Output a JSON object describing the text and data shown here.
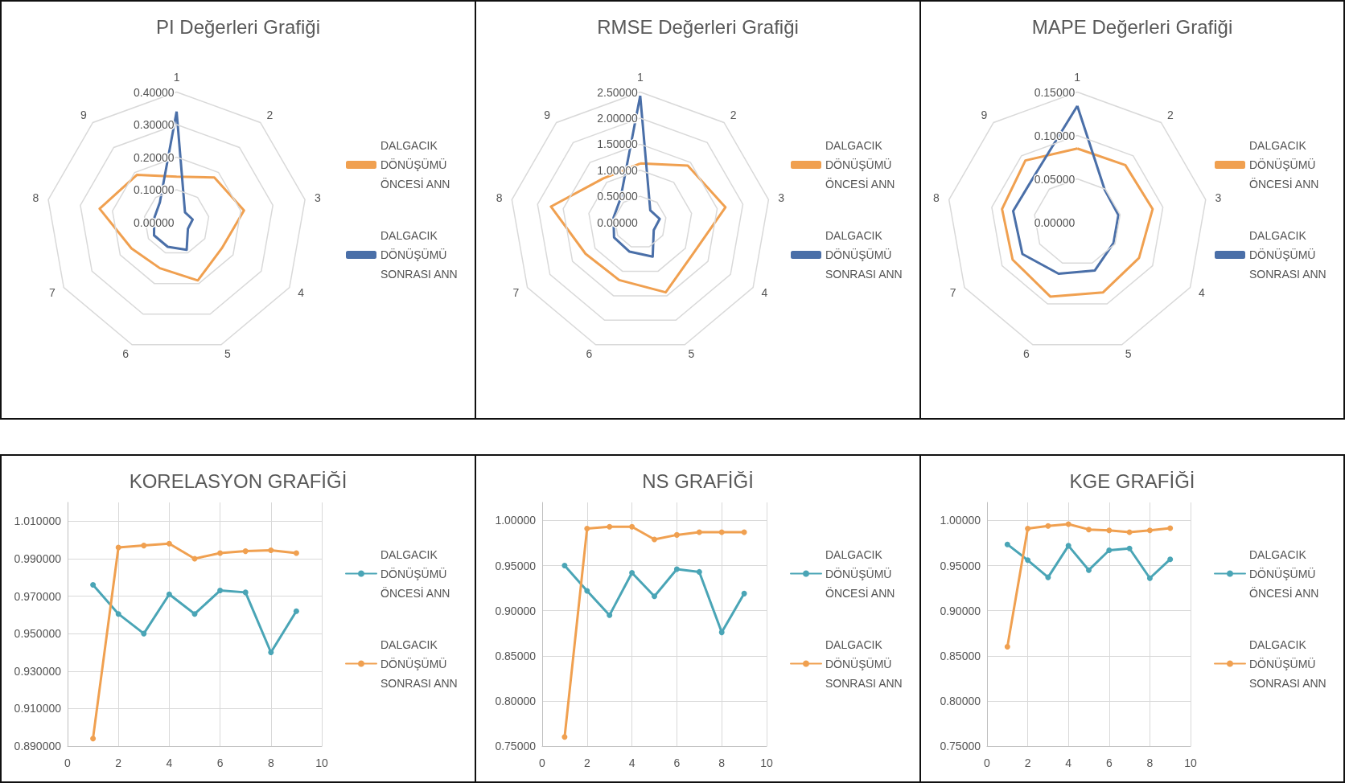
{
  "chart_data": [
    {
      "type": "radar",
      "title": "PI Değerleri Grafiği",
      "categories": [
        "1",
        "2",
        "3",
        "4",
        "5",
        "6",
        "7",
        "8",
        "9"
      ],
      "ylim": [
        0,
        0.4
      ],
      "yticks": [
        {
          "value": 0,
          "label": "0.00000"
        },
        {
          "value": 0.1,
          "label": "0.10000"
        },
        {
          "value": 0.2,
          "label": "0.20000"
        },
        {
          "value": 0.3,
          "label": "0.30000"
        },
        {
          "value": 0.4,
          "label": "0.40000"
        }
      ],
      "grid": true,
      "legend": "right",
      "series": [
        {
          "name": "DALGACIK DÖNÜŞÜMÜ ÖNCESİ ANN",
          "color": "#f0a050",
          "values": [
            0.14,
            0.18,
            0.21,
            0.16,
            0.19,
            0.15,
            0.16,
            0.24,
            0.19
          ]
        },
        {
          "name": "DALGACIK DÖNÜŞÜMÜ SONRASI ANN",
          "color": "#4a6fa8",
          "values": [
            0.34,
            0.04,
            0.05,
            0.04,
            0.09,
            0.08,
            0.08,
            0.07,
            0.08
          ]
        }
      ]
    },
    {
      "type": "radar",
      "title": "RMSE Değerleri Grafiği",
      "categories": [
        "1",
        "2",
        "3",
        "4",
        "5",
        "6",
        "7",
        "8",
        "9"
      ],
      "ylim": [
        0,
        2.5
      ],
      "yticks": [
        {
          "value": 0,
          "label": "0.00000"
        },
        {
          "value": 0.5,
          "label": "0.50000"
        },
        {
          "value": 1,
          "label": "1.00000"
        },
        {
          "value": 1.5,
          "label": "1.50000"
        },
        {
          "value": 2,
          "label": "2.00000"
        },
        {
          "value": 2.5,
          "label": "2.50000"
        }
      ],
      "grid": true,
      "legend": "right",
      "series": [
        {
          "name": "DALGACIK DÖNÜŞÜMÜ ÖNCESİ ANN",
          "color": "#f0a050",
          "values": [
            1.13,
            1.42,
            1.66,
            1.18,
            1.43,
            1.18,
            1.21,
            1.74,
            1.1
          ]
        },
        {
          "name": "DALGACIK DÖNÜŞÜMÜ SONRASI ANN",
          "color": "#4a6fa8",
          "values": [
            2.43,
            0.3,
            0.38,
            0.3,
            0.7,
            0.6,
            0.58,
            0.52,
            0.59
          ]
        }
      ]
    },
    {
      "type": "radar",
      "title": "MAPE Değerleri Grafiği",
      "categories": [
        "1",
        "2",
        "3",
        "4",
        "5",
        "6",
        "7",
        "8",
        "9"
      ],
      "ylim": [
        0,
        0.15
      ],
      "yticks": [
        {
          "value": 0,
          "label": "0.00000"
        },
        {
          "value": 0.05,
          "label": "0.05000"
        },
        {
          "value": 0.1,
          "label": "0.10000"
        },
        {
          "value": 0.15,
          "label": "0.15000"
        }
      ],
      "grid": true,
      "legend": "right",
      "series": [
        {
          "name": "DALGACIK DÖNÜŞÜMÜ ÖNCESİ ANN",
          "color": "#f0a050",
          "values": [
            0.085,
            0.086,
            0.088,
            0.082,
            0.086,
            0.091,
            0.086,
            0.088,
            0.093
          ]
        },
        {
          "name": "DALGACIK DÖNÜŞÜMÜ SONRASI ANN",
          "color": "#4a6fa8",
          "values": [
            0.134,
            0.049,
            0.048,
            0.048,
            0.059,
            0.063,
            0.073,
            0.075,
            0.074
          ]
        }
      ]
    },
    {
      "type": "line",
      "title": "KORELASYON GRAFİĞİ",
      "x": [
        1,
        2,
        3,
        4,
        5,
        6,
        7,
        8,
        9
      ],
      "xlim": [
        0,
        10
      ],
      "xticks": [
        0,
        2,
        4,
        6,
        8,
        10
      ],
      "ylim": [
        0.89,
        1.02
      ],
      "yticks": [
        {
          "value": 0.89,
          "label": "0.890000"
        },
        {
          "value": 0.91,
          "label": "0.910000"
        },
        {
          "value": 0.93,
          "label": "0.930000"
        },
        {
          "value": 0.95,
          "label": "0.950000"
        },
        {
          "value": 0.97,
          "label": "0.970000"
        },
        {
          "value": 0.99,
          "label": "0.990000"
        },
        {
          "value": 1.01,
          "label": "1.010000"
        }
      ],
      "grid": true,
      "legend": "right",
      "marker": "circle",
      "series": [
        {
          "name": "DALGACIK DÖNÜŞÜMÜ ÖNCESİ ANN",
          "color": "#4aa5b6",
          "values": [
            0.976,
            0.9605,
            0.95,
            0.971,
            0.9605,
            0.973,
            0.972,
            0.94,
            0.962
          ]
        },
        {
          "name": "DALGACIK DÖNÜŞÜMÜ SONRASI ANN",
          "color": "#f0a050",
          "values": [
            0.894,
            0.996,
            0.997,
            0.998,
            0.99,
            0.993,
            0.994,
            0.9945,
            0.993
          ]
        }
      ]
    },
    {
      "type": "line",
      "title": "NS GRAFİĞİ",
      "x": [
        1,
        2,
        3,
        4,
        5,
        6,
        7,
        8,
        9
      ],
      "xlim": [
        0,
        10
      ],
      "xticks": [
        0,
        2,
        4,
        6,
        8,
        10
      ],
      "ylim": [
        0.75,
        1.02
      ],
      "yticks": [
        {
          "value": 0.75,
          "label": "0.75000"
        },
        {
          "value": 0.8,
          "label": "0.80000"
        },
        {
          "value": 0.85,
          "label": "0.85000"
        },
        {
          "value": 0.9,
          "label": "0.90000"
        },
        {
          "value": 0.95,
          "label": "0.95000"
        },
        {
          "value": 1,
          "label": "1.00000"
        }
      ],
      "grid": true,
      "legend": "right",
      "marker": "circle",
      "series": [
        {
          "name": "DALGACIK DÖNÜŞÜMÜ ÖNCESİ ANN",
          "color": "#4aa5b6",
          "values": [
            0.95,
            0.922,
            0.895,
            0.942,
            0.916,
            0.946,
            0.943,
            0.876,
            0.919
          ]
        },
        {
          "name": "DALGACIK DÖNÜŞÜMÜ SONRASI ANN",
          "color": "#f0a050",
          "values": [
            0.76,
            0.991,
            0.993,
            0.993,
            0.979,
            0.984,
            0.987,
            0.987,
            0.987
          ]
        }
      ]
    },
    {
      "type": "line",
      "title": "KGE GRAFİĞİ",
      "x": [
        1,
        2,
        3,
        4,
        5,
        6,
        7,
        8,
        9
      ],
      "xlim": [
        0,
        10
      ],
      "xticks": [
        0,
        2,
        4,
        6,
        8,
        10
      ],
      "ylim": [
        0.75,
        1.02
      ],
      "yticks": [
        {
          "value": 0.75,
          "label": "0.75000"
        },
        {
          "value": 0.8,
          "label": "0.80000"
        },
        {
          "value": 0.85,
          "label": "0.85000"
        },
        {
          "value": 0.9,
          "label": "0.90000"
        },
        {
          "value": 0.95,
          "label": "0.95000"
        },
        {
          "value": 1,
          "label": "1.00000"
        }
      ],
      "grid": true,
      "legend": "right",
      "marker": "circle",
      "series": [
        {
          "name": "DALGACIK DÖNÜŞÜMÜ ÖNCESİ ANN",
          "color": "#4aa5b6",
          "values": [
            0.9735,
            0.956,
            0.937,
            0.972,
            0.945,
            0.967,
            0.969,
            0.936,
            0.957
          ]
        },
        {
          "name": "DALGACIK DÖNÜŞÜMÜ SONRASI ANN",
          "color": "#f0a050",
          "values": [
            0.86,
            0.991,
            0.994,
            0.996,
            0.99,
            0.989,
            0.987,
            0.989,
            0.9915
          ]
        }
      ]
    }
  ]
}
